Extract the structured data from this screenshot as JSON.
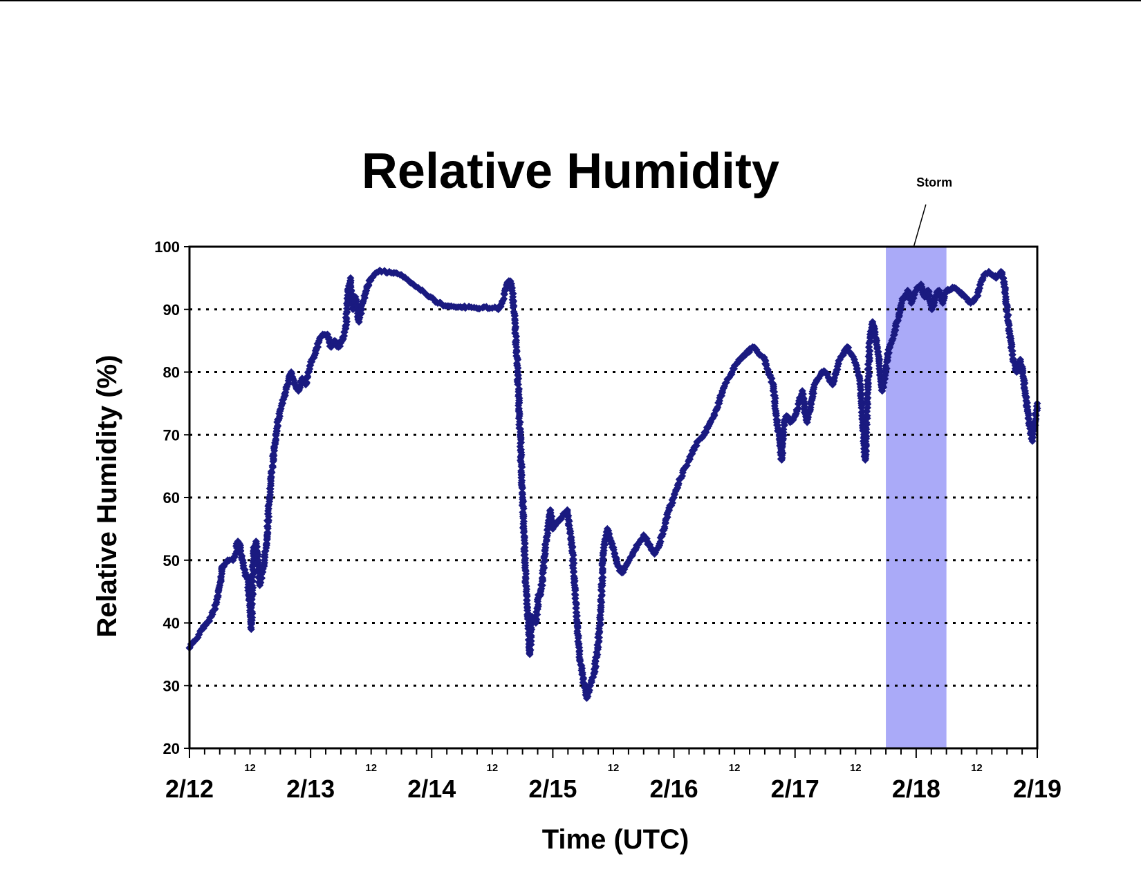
{
  "chart_data": {
    "type": "scatter",
    "title": "Relative Humidity",
    "xlabel": "Time (UTC)",
    "ylabel": "Relative Humidity (%)",
    "ylim": [
      20,
      100
    ],
    "yticks": [
      20,
      30,
      40,
      50,
      60,
      70,
      80,
      90,
      100
    ],
    "xlim_days": [
      "2/12",
      "2/19"
    ],
    "xtick_labels": [
      "2/12",
      "2/13",
      "2/14",
      "2/15",
      "2/16",
      "2/17",
      "2/18",
      "2/19"
    ],
    "minor_tick_label": "12",
    "grid": "horizontal dotted",
    "marker_color": "#1a1a80",
    "annotation": {
      "text": "Storm",
      "start": "2/17 18:00",
      "end": "2/18 06:00",
      "color": "#aaaaf8"
    },
    "series": [
      {
        "x_unit": "day (2/12 00:00 = 0)",
        "points": [
          [
            0.0,
            36
          ],
          [
            0.03,
            37
          ],
          [
            0.06,
            37.5
          ],
          [
            0.1,
            39
          ],
          [
            0.14,
            40
          ],
          [
            0.18,
            41
          ],
          [
            0.22,
            43
          ],
          [
            0.25,
            46
          ],
          [
            0.27,
            49
          ],
          [
            0.3,
            49.5
          ],
          [
            0.33,
            50
          ],
          [
            0.36,
            50
          ],
          [
            0.38,
            51
          ],
          [
            0.4,
            53
          ],
          [
            0.42,
            52
          ],
          [
            0.44,
            50
          ],
          [
            0.46,
            48
          ],
          [
            0.48,
            47
          ],
          [
            0.5,
            42
          ],
          [
            0.51,
            39
          ],
          [
            0.53,
            52
          ],
          [
            0.55,
            53
          ],
          [
            0.58,
            46
          ],
          [
            0.62,
            50
          ],
          [
            0.64,
            54
          ],
          [
            0.66,
            60
          ],
          [
            0.68,
            64
          ],
          [
            0.7,
            68
          ],
          [
            0.72,
            71
          ],
          [
            0.75,
            74
          ],
          [
            0.78,
            76
          ],
          [
            0.81,
            78
          ],
          [
            0.84,
            80
          ],
          [
            0.87,
            78
          ],
          [
            0.9,
            77
          ],
          [
            0.93,
            79
          ],
          [
            0.96,
            78
          ],
          [
            0.98,
            80
          ],
          [
            1.01,
            82
          ],
          [
            1.04,
            83
          ],
          [
            1.07,
            85
          ],
          [
            1.1,
            86
          ],
          [
            1.14,
            86
          ],
          [
            1.17,
            84
          ],
          [
            1.2,
            85
          ],
          [
            1.23,
            84
          ],
          [
            1.26,
            85
          ],
          [
            1.29,
            87
          ],
          [
            1.31,
            93
          ],
          [
            1.33,
            95
          ],
          [
            1.35,
            90
          ],
          [
            1.37,
            92
          ],
          [
            1.4,
            88
          ],
          [
            1.43,
            91
          ],
          [
            1.46,
            93
          ],
          [
            1.5,
            95
          ],
          [
            1.56,
            96
          ],
          [
            1.65,
            96
          ],
          [
            1.75,
            95.5
          ],
          [
            1.85,
            94
          ],
          [
            1.95,
            92.5
          ],
          [
            2.05,
            91
          ],
          [
            2.15,
            90.5
          ],
          [
            2.25,
            90.3
          ],
          [
            2.35,
            90.3
          ],
          [
            2.5,
            90.2
          ],
          [
            2.55,
            90
          ],
          [
            2.58,
            91
          ],
          [
            2.62,
            94
          ],
          [
            2.65,
            94.5
          ],
          [
            2.67,
            92
          ],
          [
            2.69,
            87
          ],
          [
            2.7,
            84
          ],
          [
            2.71,
            80
          ],
          [
            2.72,
            75
          ],
          [
            2.73,
            70
          ],
          [
            2.74,
            65
          ],
          [
            2.75,
            60
          ],
          [
            2.76,
            55
          ],
          [
            2.77,
            50
          ],
          [
            2.78,
            45
          ],
          [
            2.79,
            42
          ],
          [
            2.8,
            40
          ],
          [
            2.81,
            35
          ],
          [
            2.83,
            41
          ],
          [
            2.86,
            40
          ],
          [
            2.88,
            44
          ],
          [
            2.9,
            45
          ],
          [
            2.92,
            48
          ],
          [
            2.94,
            52
          ],
          [
            2.96,
            55
          ],
          [
            2.98,
            58
          ],
          [
            3.0,
            55
          ],
          [
            3.04,
            56
          ],
          [
            3.08,
            57
          ],
          [
            3.12,
            58
          ],
          [
            3.14,
            55
          ],
          [
            3.16,
            52
          ],
          [
            3.18,
            46
          ],
          [
            3.2,
            40
          ],
          [
            3.22,
            35
          ],
          [
            3.25,
            31
          ],
          [
            3.28,
            28
          ],
          [
            3.31,
            30
          ],
          [
            3.34,
            32
          ],
          [
            3.37,
            36
          ],
          [
            3.39,
            40
          ],
          [
            3.42,
            52
          ],
          [
            3.45,
            55
          ],
          [
            3.48,
            53
          ],
          [
            3.51,
            51
          ],
          [
            3.54,
            49
          ],
          [
            3.57,
            48
          ],
          [
            3.6,
            49
          ],
          [
            3.63,
            50
          ],
          [
            3.66,
            51
          ],
          [
            3.69,
            52
          ],
          [
            3.72,
            53
          ],
          [
            3.75,
            54
          ],
          [
            3.78,
            53
          ],
          [
            3.81,
            52
          ],
          [
            3.84,
            51
          ],
          [
            3.87,
            52
          ],
          [
            3.9,
            54
          ],
          [
            3.93,
            56
          ],
          [
            3.96,
            58
          ],
          [
            4.0,
            60
          ],
          [
            4.05,
            63
          ],
          [
            4.1,
            65
          ],
          [
            4.15,
            67
          ],
          [
            4.2,
            69
          ],
          [
            4.25,
            70
          ],
          [
            4.3,
            72
          ],
          [
            4.35,
            74
          ],
          [
            4.4,
            77
          ],
          [
            4.45,
            79
          ],
          [
            4.5,
            81
          ],
          [
            4.55,
            82
          ],
          [
            4.6,
            83
          ],
          [
            4.65,
            84
          ],
          [
            4.7,
            83
          ],
          [
            4.75,
            82
          ],
          [
            4.78,
            80
          ],
          [
            4.82,
            78
          ],
          [
            4.85,
            72
          ],
          [
            4.87,
            70
          ],
          [
            4.89,
            66
          ],
          [
            4.91,
            72
          ],
          [
            4.93,
            73
          ],
          [
            4.96,
            72
          ],
          [
            5.0,
            73
          ],
          [
            5.03,
            75
          ],
          [
            5.06,
            77
          ],
          [
            5.08,
            74
          ],
          [
            5.1,
            72
          ],
          [
            5.13,
            75
          ],
          [
            5.16,
            78
          ],
          [
            5.19,
            79
          ],
          [
            5.22,
            80
          ],
          [
            5.25,
            80
          ],
          [
            5.28,
            79
          ],
          [
            5.31,
            78
          ],
          [
            5.34,
            80
          ],
          [
            5.37,
            82
          ],
          [
            5.4,
            83
          ],
          [
            5.43,
            84
          ],
          [
            5.46,
            83
          ],
          [
            5.49,
            82
          ],
          [
            5.52,
            80
          ],
          [
            5.54,
            78
          ],
          [
            5.56,
            72
          ],
          [
            5.58,
            66
          ],
          [
            5.6,
            78
          ],
          [
            5.62,
            86
          ],
          [
            5.64,
            88
          ],
          [
            5.66,
            86
          ],
          [
            5.68,
            84
          ],
          [
            5.7,
            80
          ],
          [
            5.72,
            77
          ],
          [
            5.74,
            79
          ],
          [
            5.76,
            82
          ],
          [
            5.78,
            84
          ],
          [
            5.8,
            85
          ],
          [
            5.82,
            86
          ],
          [
            5.84,
            88
          ],
          [
            5.86,
            89
          ],
          [
            5.88,
            91
          ],
          [
            5.9,
            92
          ],
          [
            5.93,
            93
          ],
          [
            5.96,
            91
          ],
          [
            6.0,
            93
          ],
          [
            6.04,
            94
          ],
          [
            6.07,
            92
          ],
          [
            6.1,
            93
          ],
          [
            6.13,
            90
          ],
          [
            6.16,
            92
          ],
          [
            6.19,
            93
          ],
          [
            6.22,
            91
          ],
          [
            6.25,
            93
          ],
          [
            6.3,
            93.5
          ],
          [
            6.35,
            93
          ],
          [
            6.4,
            92
          ],
          [
            6.45,
            91
          ],
          [
            6.5,
            92
          ],
          [
            6.53,
            94
          ],
          [
            6.56,
            95.5
          ],
          [
            6.6,
            96
          ],
          [
            6.63,
            95.5
          ],
          [
            6.66,
            95
          ],
          [
            6.68,
            95.5
          ],
          [
            6.7,
            96
          ],
          [
            6.72,
            95
          ],
          [
            6.74,
            92
          ],
          [
            6.76,
            88
          ],
          [
            6.78,
            85
          ],
          [
            6.8,
            82
          ],
          [
            6.83,
            80
          ],
          [
            6.86,
            82
          ],
          [
            6.88,
            80
          ],
          [
            6.9,
            77
          ],
          [
            6.92,
            74
          ],
          [
            6.94,
            71
          ],
          [
            6.96,
            69
          ],
          [
            6.98,
            72
          ],
          [
            7.0,
            75
          ]
        ]
      }
    ]
  }
}
